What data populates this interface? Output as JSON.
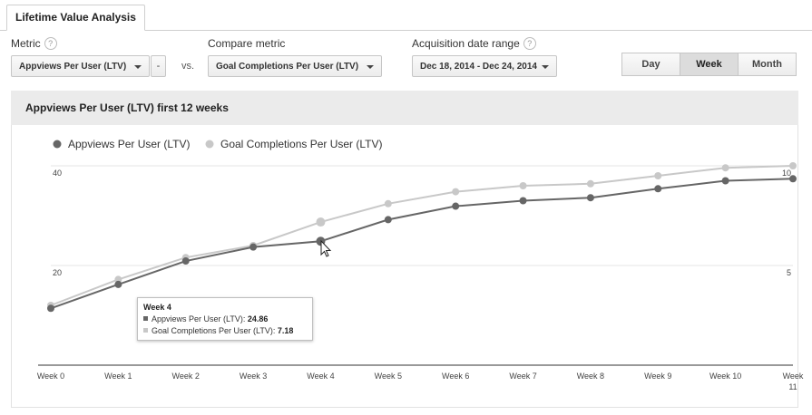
{
  "tab": {
    "label": "Lifetime Value Analysis"
  },
  "controls": {
    "metric_label": "Metric",
    "metric_value": "Appviews Per User (LTV)",
    "remove_label": "-",
    "vs_label": "vs.",
    "compare_label": "Compare metric",
    "compare_value": "Goal Completions Per User (LTV)",
    "date_label": "Acquisition date range",
    "date_value": "Dec 18, 2014 - Dec 24, 2014",
    "help_glyph": "?",
    "granularity": [
      "Day",
      "Week",
      "Month"
    ],
    "granularity_selected": "Week"
  },
  "panel": {
    "title": "Appviews Per User (LTV) first 12 weeks"
  },
  "colors": {
    "series1": "#666666",
    "series2": "#c8c8c8"
  },
  "chart_data": {
    "type": "line",
    "title": "Appviews Per User (LTV) first 12 weeks",
    "categories": [
      "Week 0",
      "Week 1",
      "Week 2",
      "Week 3",
      "Week 4",
      "Week 5",
      "Week 6",
      "Week 7",
      "Week 8",
      "Week 9",
      "Week 10",
      "Week 11"
    ],
    "series": [
      {
        "name": "Appviews Per User (LTV)",
        "axis": "left",
        "values": [
          11.4,
          16.2,
          20.9,
          23.7,
          24.86,
          29.2,
          31.9,
          33.0,
          33.6,
          35.4,
          37.0,
          37.4
        ]
      },
      {
        "name": "Goal Completions Per User (LTV)",
        "axis": "right",
        "values": [
          3.0,
          4.3,
          5.4,
          6.0,
          7.18,
          8.1,
          8.7,
          9.0,
          9.1,
          9.5,
          9.9,
          10.0
        ]
      }
    ],
    "left_axis": {
      "min": 0,
      "max": 40,
      "ticks": [
        "20",
        "40"
      ]
    },
    "right_axis": {
      "min": 0,
      "max": 10,
      "ticks": [
        "5",
        "10"
      ]
    },
    "legend_position": "top-left",
    "grid": true
  },
  "tooltip": {
    "title": "Week 4",
    "line1_label": "Appviews Per User (LTV):",
    "line1_value": "24.86",
    "line2_label": "Goal Completions Per User (LTV):",
    "line2_value": "7.18"
  }
}
